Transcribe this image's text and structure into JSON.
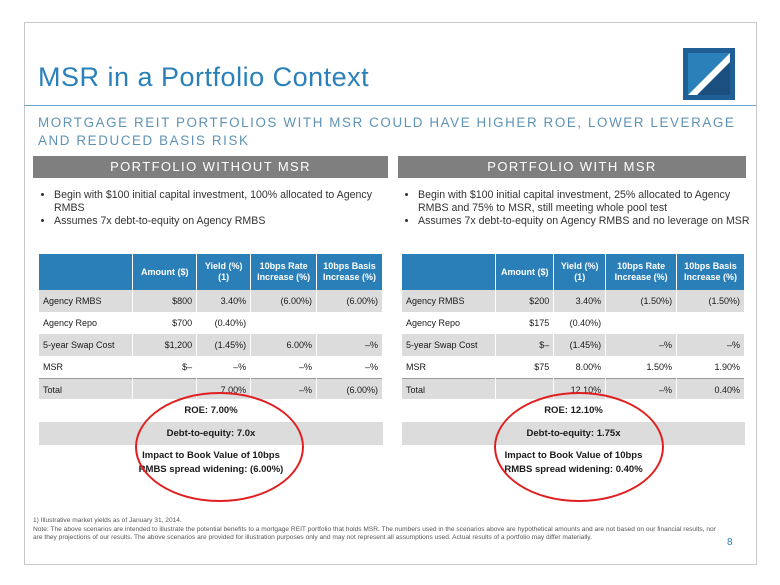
{
  "title": "MSR in a Portfolio Context",
  "subtitle": "MORTGAGE REIT PORTFOLIOS WITH MSR COULD HAVE HIGHER ROE, LOWER LEVERAGE AND REDUCED BASIS RISK",
  "left": {
    "heading": "PORTFOLIO WITHOUT MSR",
    "bullets": [
      "Begin with $100 initial capital investment, 100% allocated to Agency RMBS",
      "Assumes 7x debt-to-equity on Agency RMBS"
    ],
    "headers": [
      "",
      "Amount ($)",
      "Yield (%)(1)",
      "10bps Rate Increase (%)",
      "10bps Basis Increase (%)"
    ],
    "rows": [
      [
        "Agency RMBS",
        "$800",
        "3.40%",
        "(6.00%)",
        "(6.00%)"
      ],
      [
        "Agency Repo",
        "$700",
        "(0.40%)",
        "",
        ""
      ],
      [
        "5-year Swap Cost",
        "$1,200",
        "(1.45%)",
        "6.00%",
        "–%"
      ],
      [
        "MSR",
        "$–",
        "–%",
        "–%",
        "–%"
      ],
      [
        "Total",
        "",
        "7.00%",
        "–%",
        "(6.00%)"
      ]
    ],
    "roe": "ROE: 7.00%",
    "debt": "Debt-to-equity: 7.0x",
    "impact_line1": "Impact to Book Value of 10bps",
    "impact_line2": "RMBS spread widening: (6.00%)"
  },
  "right": {
    "heading": "PORTFOLIO WITH MSR",
    "bullets": [
      "Begin with $100 initial capital investment, 25% allocated to Agency RMBS and 75% to MSR, still meeting whole pool test",
      "Assumes 7x debt-to-equity on Agency RMBS and no leverage on MSR"
    ],
    "headers": [
      "",
      "Amount ($)",
      "Yield (%)(1)",
      "10bps Rate Increase (%)",
      "10bps Basis Increase (%)"
    ],
    "rows": [
      [
        "Agency RMBS",
        "$200",
        "3.40%",
        "(1.50%)",
        "(1.50%)"
      ],
      [
        "Agency Repo",
        "$175",
        "(0.40%)",
        "",
        ""
      ],
      [
        "5-year Swap Cost",
        "$–",
        "(1.45%)",
        "–%",
        "–%"
      ],
      [
        "MSR",
        "$75",
        "8.00%",
        "1.50%",
        "1.90%"
      ],
      [
        "Total",
        "",
        "12.10%",
        "–%",
        "0.40%"
      ]
    ],
    "roe": "ROE: 12.10%",
    "debt": "Debt-to-equity: 1.75x",
    "impact_line1": "Impact to Book Value of 10bps",
    "impact_line2": "RMBS spread widening: 0.40%"
  },
  "footnote_1": "1)      Illustrative market yields as of January 31, 2014.",
  "footnote_note": "Note: The above scenarios are intended to illustrate the potential benefits to a mortgage REIT portfolio that holds MSR. The numbers used in the scenarios above are hypothetical amounts and are not based on our financial results, nor are they projections of our results. The above scenarios are provided for illustration purposes only and may not represent all assumptions used. Actual results of a portfolio may differ materially.",
  "page_number": "8",
  "colors": {
    "accent": "#2a80b9",
    "table_header": "#2b7fb8",
    "panel_header": "#7f7f7f",
    "highlight_oval": "#e02020"
  }
}
